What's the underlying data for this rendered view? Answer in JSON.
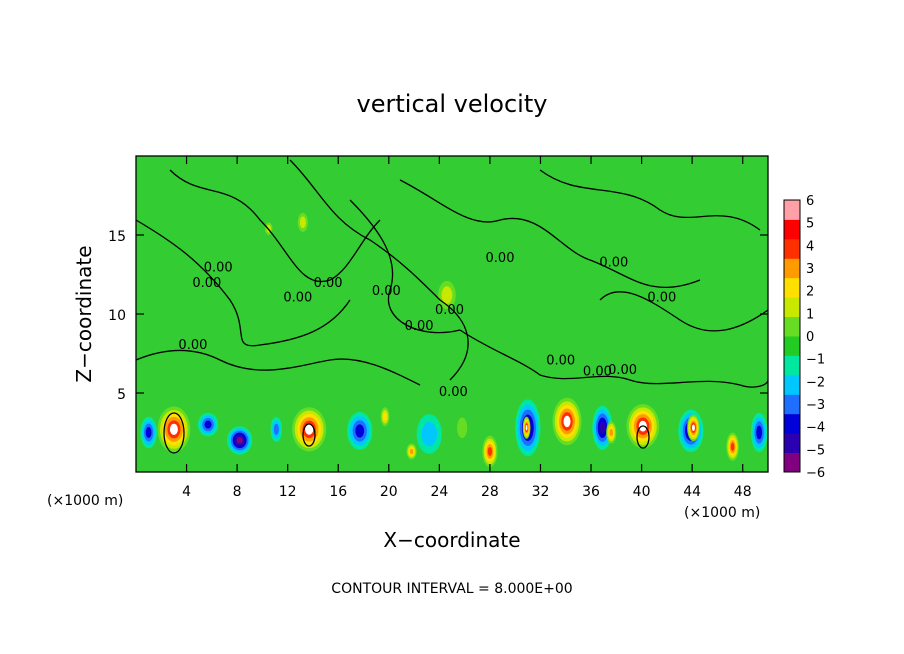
{
  "chart_data": {
    "type": "heatmap",
    "title": "vertical velocity",
    "xlabel": "X−coordinate",
    "ylabel": "Z−coordinate",
    "x_unit": "(×1000 m)",
    "x_unit_secondary": "(×1000 m)",
    "xlim": [
      0,
      50
    ],
    "ylim": [
      0,
      20
    ],
    "x_ticks": [
      4,
      8,
      12,
      16,
      20,
      24,
      28,
      32,
      36,
      40,
      44,
      48
    ],
    "x_tick_labels": [
      "4",
      "8",
      "12",
      "16",
      "20",
      "24",
      "28",
      "32",
      "36",
      "40",
      "44",
      "48"
    ],
    "y_ticks": [
      5,
      10,
      15
    ],
    "y_tick_labels": [
      "5",
      "10",
      "15"
    ],
    "colorbar": {
      "levels": [
        -6,
        -5,
        -4,
        -3,
        -2,
        -1,
        0,
        1,
        2,
        3,
        4,
        5,
        6
      ],
      "labels": [
        "−6",
        "−5",
        "−4",
        "−3",
        "−2",
        "−1",
        "0",
        "1",
        "2",
        "3",
        "4",
        "5",
        "6"
      ],
      "colors": [
        "#800080",
        "#2a00b0",
        "#0000d8",
        "#1e6eff",
        "#00c8ff",
        "#00e8a0",
        "#22cc22",
        "#66dd22",
        "#c8e800",
        "#ffe000",
        "#ff9a00",
        "#ff3000",
        "#ff0000",
        "#ff9fa8"
      ]
    },
    "background_color": "#33cc33",
    "cells": [
      {
        "x": 3,
        "z": 2.7,
        "w": 2.6,
        "h": 2.9,
        "value": 6
      },
      {
        "x": 8.2,
        "z": 2.0,
        "w": 2.0,
        "h": 1.8,
        "value": -6
      },
      {
        "x": 13.7,
        "z": 2.7,
        "w": 2.7,
        "h": 2.8,
        "value": 6
      },
      {
        "x": 1.0,
        "z": 2.5,
        "w": 1.3,
        "h": 2.0,
        "value": -4
      },
      {
        "x": 5.7,
        "z": 3.0,
        "w": 1.6,
        "h": 1.5,
        "value": -4
      },
      {
        "x": 11.1,
        "z": 2.7,
        "w": 0.9,
        "h": 1.6,
        "value": -3
      },
      {
        "x": 17.7,
        "z": 2.6,
        "w": 2.0,
        "h": 2.4,
        "value": -4
      },
      {
        "x": 19.7,
        "z": 3.5,
        "w": 0.7,
        "h": 1.2,
        "value": 3
      },
      {
        "x": 21.8,
        "z": 1.3,
        "w": 0.8,
        "h": 1.0,
        "value": 4
      },
      {
        "x": 23.2,
        "z": 2.4,
        "w": 2.0,
        "h": 2.5,
        "value": -2
      },
      {
        "x": 25.8,
        "z": 2.8,
        "w": 0.8,
        "h": 1.3,
        "value": 1
      },
      {
        "x": 28.0,
        "z": 1.3,
        "w": 1.2,
        "h": 2.0,
        "value": 5
      },
      {
        "x": 31.0,
        "z": 2.8,
        "w": 2.0,
        "h": 3.6,
        "value": -5
      },
      {
        "x": 30.9,
        "z": 2.8,
        "w": 0.6,
        "h": 1.4,
        "value": 6
      },
      {
        "x": 34.1,
        "z": 3.2,
        "w": 2.3,
        "h": 3.0,
        "value": 6
      },
      {
        "x": 36.9,
        "z": 2.8,
        "w": 1.6,
        "h": 2.8,
        "value": -5
      },
      {
        "x": 37.6,
        "z": 2.5,
        "w": 0.8,
        "h": 1.4,
        "value": 4
      },
      {
        "x": 40.1,
        "z": 2.9,
        "w": 2.6,
        "h": 2.8,
        "value": 6
      },
      {
        "x": 43.9,
        "z": 2.6,
        "w": 2.0,
        "h": 2.7,
        "value": -5
      },
      {
        "x": 44.1,
        "z": 2.8,
        "w": 1.0,
        "h": 1.7,
        "value": 6
      },
      {
        "x": 47.2,
        "z": 1.6,
        "w": 1.0,
        "h": 1.8,
        "value": 5
      },
      {
        "x": 49.3,
        "z": 2.5,
        "w": 1.3,
        "h": 2.5,
        "value": -4
      },
      {
        "x": 24.6,
        "z": 11.2,
        "w": 1.4,
        "h": 1.8,
        "value": 2
      },
      {
        "x": 13.2,
        "z": 15.8,
        "w": 0.8,
        "h": 1.2,
        "value": 2
      },
      {
        "x": 10.5,
        "z": 15.4,
        "w": 0.6,
        "h": 0.8,
        "value": 2
      }
    ],
    "contour_interval_label": "CONTOUR INTERVAL = 8.000E+00",
    "contour_labels": [
      "0.00",
      "0.00",
      "0.00",
      "0.00",
      "0.00",
      "0.00",
      "0.00",
      "0.00",
      "0.00",
      "0.00",
      "0.00",
      "0.00",
      "0.00",
      "0.00",
      "0.00"
    ]
  }
}
